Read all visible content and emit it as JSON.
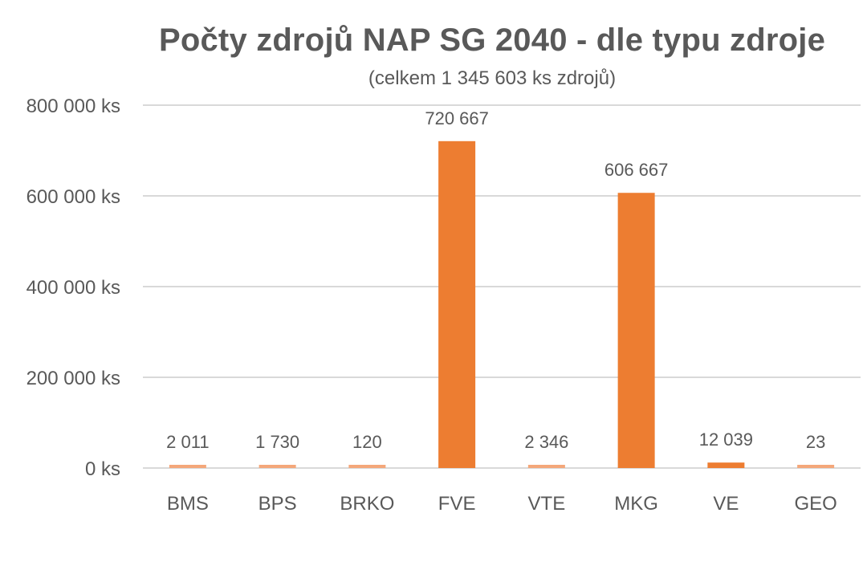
{
  "chart_data": {
    "type": "bar",
    "title": "Počty zdrojů NAP SG 2040 - dle typu zdroje",
    "subtitle": "(celkem 1 345 603 ks zdrojů)",
    "xlabel": "",
    "ylabel": "",
    "categories": [
      "BMS",
      "BPS",
      "BRKO",
      "FVE",
      "VTE",
      "MKG",
      "VE",
      "GEO"
    ],
    "values": [
      2011,
      1730,
      120,
      720667,
      2346,
      606667,
      12039,
      23
    ],
    "data_labels": [
      "2 011",
      "1 730",
      "120",
      "720 667",
      "2 346",
      "606 667",
      "12 039",
      "23"
    ],
    "ylim": [
      0,
      800000
    ],
    "y_ticks": [
      0,
      200000,
      400000,
      600000,
      800000
    ],
    "y_tick_labels": [
      "0 ks",
      "200 000 ks",
      "400 000 ks",
      "600 000 ks",
      "800 000 ks"
    ],
    "grid": true,
    "legend": "none",
    "colors": {
      "bar": "#ED7D31",
      "bar_small": "#F4A77A",
      "grid": "#D9D9D9",
      "text": "#595959"
    }
  }
}
